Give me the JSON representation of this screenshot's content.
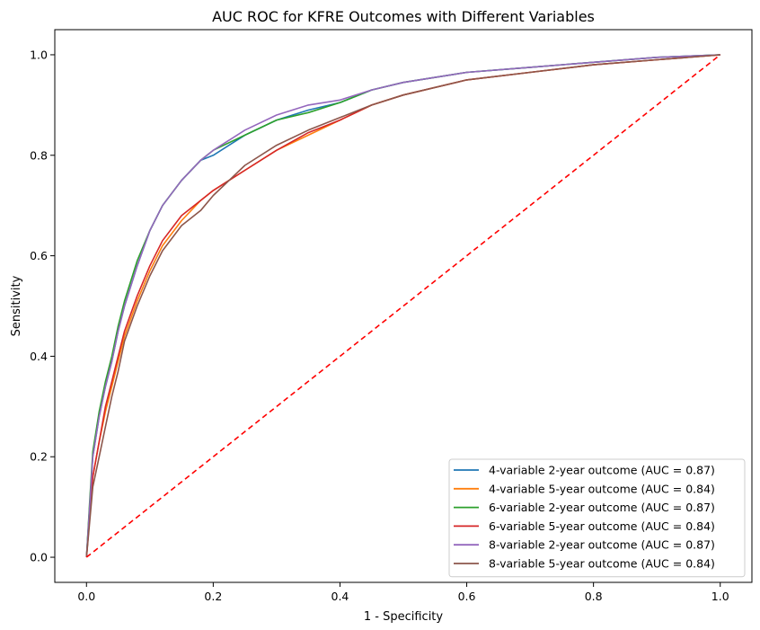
{
  "chart_data": {
    "type": "line",
    "title": "AUC ROC for KFRE Outcomes with Different Variables",
    "xlabel": "1 - Specificity",
    "ylabel": "Sensitivity",
    "xlim": [
      -0.05,
      1.05
    ],
    "ylim": [
      -0.05,
      1.05
    ],
    "x_ticks": [
      "0.0",
      "0.2",
      "0.4",
      "0.6",
      "0.8",
      "1.0"
    ],
    "y_ticks": [
      "0.0",
      "0.2",
      "0.4",
      "0.6",
      "0.8",
      "1.0"
    ],
    "grid": false,
    "legend_position": "lower-right",
    "series": [
      {
        "name": "4-variable 2-year outcome (AUC = 0.87)",
        "color": "#1f77b4",
        "x": [
          0.0,
          0.005,
          0.01,
          0.02,
          0.03,
          0.04,
          0.05,
          0.06,
          0.08,
          0.1,
          0.12,
          0.15,
          0.18,
          0.2,
          0.25,
          0.3,
          0.35,
          0.4,
          0.45,
          0.5,
          0.6,
          0.7,
          0.8,
          0.9,
          1.0
        ],
        "y": [
          0.0,
          0.1,
          0.2,
          0.28,
          0.34,
          0.39,
          0.45,
          0.5,
          0.58,
          0.65,
          0.7,
          0.75,
          0.79,
          0.8,
          0.84,
          0.87,
          0.89,
          0.905,
          0.93,
          0.945,
          0.965,
          0.975,
          0.985,
          0.995,
          1.0
        ]
      },
      {
        "name": "4-variable 5-year outcome (AUC = 0.84)",
        "color": "#ff7f0e",
        "x": [
          0.0,
          0.005,
          0.01,
          0.02,
          0.03,
          0.04,
          0.05,
          0.06,
          0.08,
          0.1,
          0.12,
          0.15,
          0.18,
          0.2,
          0.25,
          0.3,
          0.35,
          0.4,
          0.45,
          0.5,
          0.6,
          0.7,
          0.8,
          0.9,
          1.0
        ],
        "y": [
          0.0,
          0.08,
          0.16,
          0.23,
          0.29,
          0.34,
          0.39,
          0.44,
          0.51,
          0.57,
          0.62,
          0.67,
          0.71,
          0.73,
          0.77,
          0.81,
          0.84,
          0.87,
          0.9,
          0.92,
          0.95,
          0.965,
          0.98,
          0.99,
          1.0
        ]
      },
      {
        "name": "6-variable 2-year outcome (AUC = 0.87)",
        "color": "#2ca02c",
        "x": [
          0.0,
          0.005,
          0.01,
          0.02,
          0.03,
          0.04,
          0.05,
          0.06,
          0.08,
          0.1,
          0.12,
          0.15,
          0.18,
          0.2,
          0.25,
          0.3,
          0.35,
          0.4,
          0.45,
          0.5,
          0.6,
          0.7,
          0.8,
          0.9,
          1.0
        ],
        "y": [
          0.0,
          0.11,
          0.21,
          0.29,
          0.35,
          0.4,
          0.46,
          0.51,
          0.59,
          0.65,
          0.7,
          0.75,
          0.79,
          0.81,
          0.84,
          0.87,
          0.885,
          0.905,
          0.93,
          0.945,
          0.965,
          0.975,
          0.985,
          0.995,
          1.0
        ]
      },
      {
        "name": "6-variable 5-year outcome (AUC = 0.84)",
        "color": "#d62728",
        "x": [
          0.0,
          0.005,
          0.01,
          0.02,
          0.03,
          0.04,
          0.05,
          0.06,
          0.08,
          0.1,
          0.12,
          0.15,
          0.18,
          0.2,
          0.25,
          0.3,
          0.35,
          0.4,
          0.45,
          0.5,
          0.6,
          0.7,
          0.8,
          0.9,
          1.0
        ],
        "y": [
          0.0,
          0.08,
          0.16,
          0.23,
          0.3,
          0.35,
          0.4,
          0.45,
          0.52,
          0.58,
          0.63,
          0.68,
          0.71,
          0.73,
          0.77,
          0.81,
          0.845,
          0.87,
          0.9,
          0.92,
          0.95,
          0.965,
          0.98,
          0.99,
          1.0
        ]
      },
      {
        "name": "8-variable 2-year outcome (AUC = 0.87)",
        "color": "#9467bd",
        "x": [
          0.0,
          0.005,
          0.01,
          0.02,
          0.03,
          0.04,
          0.05,
          0.06,
          0.08,
          0.1,
          0.12,
          0.15,
          0.18,
          0.2,
          0.25,
          0.3,
          0.35,
          0.4,
          0.45,
          0.5,
          0.6,
          0.7,
          0.8,
          0.9,
          1.0
        ],
        "y": [
          0.0,
          0.1,
          0.2,
          0.28,
          0.34,
          0.39,
          0.45,
          0.5,
          0.58,
          0.65,
          0.7,
          0.75,
          0.79,
          0.81,
          0.85,
          0.88,
          0.9,
          0.91,
          0.93,
          0.945,
          0.965,
          0.975,
          0.985,
          0.995,
          1.0
        ]
      },
      {
        "name": "8-variable 5-year outcome (AUC = 0.84)",
        "color": "#8c564b",
        "x": [
          0.0,
          0.005,
          0.01,
          0.02,
          0.03,
          0.04,
          0.05,
          0.06,
          0.08,
          0.1,
          0.12,
          0.15,
          0.18,
          0.2,
          0.25,
          0.3,
          0.35,
          0.4,
          0.45,
          0.5,
          0.6,
          0.7,
          0.8,
          0.9,
          1.0
        ],
        "y": [
          0.0,
          0.07,
          0.14,
          0.2,
          0.26,
          0.32,
          0.37,
          0.43,
          0.5,
          0.56,
          0.61,
          0.66,
          0.69,
          0.72,
          0.78,
          0.82,
          0.85,
          0.875,
          0.9,
          0.92,
          0.95,
          0.965,
          0.98,
          0.99,
          1.0
        ]
      }
    ],
    "reference_line": {
      "x": [
        0.0,
        1.0
      ],
      "y": [
        0.0,
        1.0
      ],
      "color": "#ff0000",
      "style": "dashed"
    }
  }
}
